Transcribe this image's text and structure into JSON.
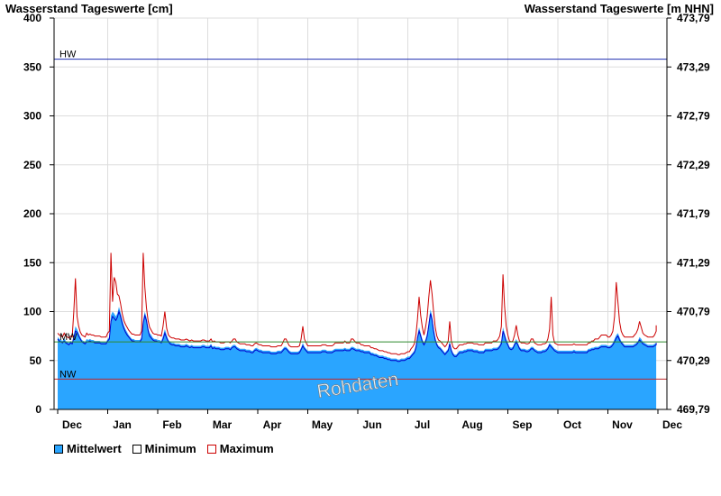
{
  "chart_data": {
    "type": "area",
    "y_left_label": "Wasserstand Tageswerte [cm]",
    "y_right_label": "Wasserstand Tageswerte [m NHN]",
    "y_left_ticks": [
      "0",
      "50",
      "100",
      "150",
      "200",
      "250",
      "300",
      "350",
      "400"
    ],
    "y_right_ticks": [
      "469,79",
      "470,29",
      "470,79",
      "471,29",
      "471,79",
      "472,29",
      "472,79",
      "473,29",
      "473,79"
    ],
    "ylim": [
      0,
      400
    ],
    "x_ticks": [
      "Dec",
      "Jan",
      "Feb",
      "Mar",
      "Apr",
      "May",
      "Jun",
      "Jul",
      "Aug",
      "Sep",
      "Oct",
      "Nov",
      "Dec"
    ],
    "x_tick_units": [
      0,
      1,
      2,
      3,
      4,
      5,
      6,
      7,
      8,
      9,
      10,
      11,
      12
    ],
    "reference_lines": [
      {
        "label": "HW",
        "value": 358,
        "color": "#1f2fb0"
      },
      {
        "label": "MW",
        "value": 69,
        "color": "#2f8a2f"
      },
      {
        "label": "NW",
        "value": 31,
        "color": "#c0282c"
      }
    ],
    "watermark": "Rohdaten",
    "month_days": [
      31,
      31,
      28,
      31,
      30,
      31,
      30,
      31,
      31,
      30,
      31,
      30
    ],
    "series": [
      {
        "name": "Mittelwert",
        "color": "#2aa5ff",
        "values": [
          74,
          72,
          71,
          70,
          73,
          70,
          69,
          68,
          70,
          69,
          76,
          85,
          82,
          78,
          74,
          71,
          70,
          69,
          72,
          71,
          72,
          71,
          71,
          70,
          70,
          70,
          70,
          69,
          69,
          69,
          69,
          72,
          74,
          96,
          100,
          98,
          95,
          98,
          105,
          99,
          92,
          86,
          82,
          79,
          76,
          74,
          72,
          72,
          71,
          71,
          71,
          71,
          74,
          92,
          100,
          94,
          84,
          78,
          76,
          73,
          72,
          72,
          71,
          71,
          70,
          75,
          82,
          76,
          71,
          69,
          68,
          68,
          67,
          67,
          67,
          66,
          66,
          66,
          67,
          66,
          65,
          66,
          65,
          65,
          65,
          65,
          65,
          66,
          66,
          65,
          65,
          65,
          67,
          64,
          65,
          64,
          64,
          64,
          63,
          63,
          63,
          64,
          64,
          64,
          63,
          65,
          66,
          66,
          64,
          63,
          62,
          62,
          62,
          62,
          61,
          61,
          61,
          60,
          60,
          62,
          63,
          62,
          61,
          61,
          60,
          60,
          60,
          60,
          60,
          59,
          59,
          59,
          59,
          60,
          60,
          60,
          62,
          64,
          64,
          62,
          60,
          59,
          59,
          59,
          59,
          59,
          60,
          63,
          68,
          64,
          62,
          60,
          60,
          60,
          60,
          60,
          60,
          60,
          60,
          60,
          61,
          61,
          61,
          60,
          60,
          60,
          60,
          61,
          62,
          62,
          62,
          62,
          62,
          62,
          63,
          62,
          62,
          62,
          64,
          64,
          63,
          62,
          62,
          62,
          61,
          61,
          60,
          60,
          60,
          60,
          58,
          58,
          57,
          57,
          56,
          55,
          55,
          55,
          54,
          54,
          53,
          53,
          52,
          52,
          52,
          52,
          51,
          51,
          52,
          52,
          52,
          53,
          54,
          54,
          56,
          58,
          60,
          66,
          76,
          84,
          78,
          72,
          68,
          72,
          78,
          90,
          102,
          96,
          84,
          74,
          68,
          65,
          64,
          62,
          60,
          58,
          60,
          62,
          70,
          62,
          58,
          56,
          56,
          58,
          60,
          60,
          60,
          61,
          61,
          62,
          62,
          62,
          62,
          61,
          61,
          61,
          60,
          60,
          60,
          60,
          62,
          62,
          62,
          62,
          62,
          63,
          63,
          63,
          64,
          66,
          70,
          84,
          78,
          72,
          68,
          64,
          63,
          64,
          68,
          72,
          68,
          64,
          62,
          62,
          62,
          61,
          61,
          62,
          64,
          64,
          62,
          61,
          60,
          60,
          60,
          61,
          61,
          62,
          64,
          68,
          66,
          64,
          62,
          61,
          60,
          60,
          60,
          60,
          60,
          60,
          60,
          60,
          60,
          60,
          61,
          60,
          60,
          60,
          60,
          60,
          60,
          60,
          60,
          62,
          62,
          63,
          63,
          64,
          64,
          64,
          65,
          66,
          66,
          66,
          66,
          65,
          65,
          66,
          68,
          72,
          76,
          78,
          74,
          70,
          68,
          66,
          66,
          66,
          66,
          66,
          66,
          67,
          68,
          70,
          74,
          72,
          69,
          68,
          67,
          66,
          66,
          66,
          66,
          67,
          68,
          70,
          70
        ]
      },
      {
        "name": "Minimum",
        "color": "#0000cc",
        "values": [
          72,
          70,
          69,
          68,
          70,
          68,
          67,
          66,
          68,
          67,
          73,
          80,
          79,
          75,
          72,
          69,
          68,
          67,
          69,
          69,
          70,
          69,
          69,
          68,
          68,
          68,
          68,
          67,
          67,
          67,
          67,
          70,
          72,
          90,
          95,
          93,
          91,
          94,
          100,
          95,
          88,
          83,
          79,
          76,
          74,
          72,
          70,
          70,
          69,
          69,
          69,
          69,
          72,
          88,
          96,
          91,
          81,
          75,
          73,
          71,
          70,
          70,
          69,
          69,
          68,
          72,
          78,
          73,
          69,
          67,
          66,
          66,
          65,
          65,
          65,
          64,
          64,
          64,
          65,
          64,
          63,
          64,
          63,
          63,
          63,
          63,
          63,
          64,
          64,
          63,
          63,
          63,
          65,
          62,
          63,
          62,
          62,
          62,
          61,
          61,
          61,
          62,
          62,
          62,
          61,
          63,
          64,
          64,
          62,
          61,
          60,
          60,
          60,
          60,
          59,
          59,
          59,
          58,
          58,
          60,
          61,
          60,
          59,
          59,
          58,
          58,
          58,
          58,
          58,
          57,
          57,
          57,
          57,
          58,
          58,
          58,
          60,
          62,
          62,
          60,
          58,
          57,
          57,
          57,
          57,
          57,
          58,
          61,
          65,
          62,
          60,
          58,
          58,
          58,
          58,
          58,
          58,
          58,
          58,
          58,
          59,
          59,
          59,
          58,
          58,
          58,
          58,
          59,
          60,
          60,
          60,
          60,
          60,
          60,
          61,
          60,
          60,
          60,
          62,
          62,
          61,
          60,
          60,
          60,
          59,
          59,
          58,
          58,
          58,
          58,
          56,
          56,
          55,
          55,
          54,
          53,
          53,
          53,
          52,
          52,
          51,
          51,
          50,
          50,
          50,
          50,
          49,
          49,
          50,
          50,
          50,
          51,
          52,
          52,
          54,
          56,
          58,
          63,
          73,
          80,
          75,
          69,
          66,
          69,
          75,
          86,
          98,
          92,
          80,
          71,
          66,
          63,
          62,
          60,
          58,
          56,
          58,
          60,
          67,
          60,
          56,
          54,
          54,
          56,
          58,
          58,
          58,
          59,
          59,
          60,
          60,
          60,
          60,
          59,
          59,
          59,
          58,
          58,
          58,
          58,
          60,
          60,
          60,
          60,
          60,
          61,
          61,
          61,
          62,
          64,
          67,
          80,
          75,
          69,
          66,
          62,
          61,
          62,
          66,
          69,
          66,
          62,
          60,
          60,
          60,
          59,
          59,
          60,
          62,
          62,
          60,
          59,
          58,
          58,
          58,
          59,
          59,
          60,
          62,
          66,
          64,
          62,
          60,
          59,
          58,
          58,
          58,
          58,
          58,
          58,
          58,
          58,
          58,
          58,
          59,
          58,
          58,
          58,
          58,
          58,
          58,
          58,
          58,
          60,
          60,
          61,
          61,
          62,
          62,
          62,
          63,
          64,
          64,
          64,
          64,
          63,
          63,
          64,
          66,
          69,
          73,
          75,
          71,
          68,
          66,
          64,
          64,
          64,
          64,
          64,
          64,
          65,
          66,
          68,
          71,
          69,
          67,
          66,
          65,
          64,
          64,
          64,
          64,
          65,
          66,
          68,
          68
        ]
      },
      {
        "name": "Maximum",
        "color": "#cc0000",
        "values": [
          78,
          76,
          75,
          74,
          78,
          75,
          74,
          73,
          75,
          74,
          100,
          134,
          95,
          85,
          79,
          76,
          75,
          74,
          78,
          76,
          77,
          76,
          76,
          75,
          75,
          75,
          75,
          74,
          74,
          74,
          74,
          78,
          80,
          160,
          110,
          135,
          130,
          118,
          116,
          108,
          98,
          91,
          87,
          84,
          81,
          79,
          77,
          77,
          76,
          76,
          76,
          76,
          80,
          160,
          125,
          104,
          91,
          84,
          81,
          78,
          77,
          77,
          76,
          76,
          75,
          85,
          100,
          83,
          76,
          74,
          73,
          73,
          72,
          72,
          72,
          71,
          71,
          71,
          72,
          71,
          70,
          71,
          70,
          70,
          70,
          70,
          70,
          71,
          71,
          70,
          70,
          70,
          72,
          69,
          70,
          69,
          69,
          69,
          68,
          68,
          68,
          69,
          69,
          69,
          68,
          70,
          72,
          72,
          69,
          68,
          67,
          67,
          67,
          67,
          66,
          66,
          66,
          65,
          65,
          67,
          68,
          67,
          66,
          66,
          65,
          65,
          65,
          65,
          65,
          64,
          64,
          64,
          64,
          65,
          65,
          65,
          68,
          72,
          72,
          68,
          65,
          64,
          64,
          64,
          64,
          64,
          65,
          72,
          85,
          72,
          68,
          65,
          65,
          65,
          65,
          65,
          65,
          65,
          65,
          65,
          66,
          66,
          66,
          65,
          65,
          65,
          65,
          66,
          68,
          68,
          68,
          68,
          68,
          68,
          70,
          68,
          68,
          68,
          72,
          72,
          70,
          68,
          68,
          68,
          66,
          66,
          65,
          65,
          65,
          65,
          63,
          63,
          62,
          62,
          61,
          60,
          60,
          60,
          59,
          59,
          58,
          58,
          57,
          57,
          57,
          57,
          56,
          56,
          57,
          57,
          57,
          58,
          59,
          59,
          62,
          64,
          67,
          76,
          92,
          115,
          96,
          84,
          76,
          84,
          95,
          115,
          132,
          118,
          100,
          84,
          75,
          71,
          70,
          68,
          66,
          64,
          66,
          70,
          90,
          70,
          64,
          62,
          62,
          64,
          66,
          66,
          66,
          67,
          67,
          68,
          68,
          68,
          68,
          67,
          67,
          67,
          66,
          66,
          66,
          66,
          68,
          68,
          68,
          68,
          68,
          70,
          70,
          70,
          72,
          75,
          85,
          138,
          105,
          85,
          76,
          70,
          69,
          70,
          76,
          86,
          76,
          70,
          68,
          68,
          68,
          67,
          67,
          68,
          72,
          72,
          68,
          67,
          66,
          66,
          66,
          67,
          67,
          68,
          72,
          82,
          115,
          76,
          68,
          67,
          66,
          66,
          66,
          66,
          66,
          66,
          66,
          66,
          66,
          66,
          67,
          66,
          66,
          66,
          66,
          66,
          66,
          66,
          66,
          68,
          68,
          70,
          70,
          72,
          72,
          72,
          74,
          76,
          76,
          76,
          76,
          74,
          74,
          76,
          80,
          95,
          130,
          110,
          90,
          80,
          76,
          74,
          74,
          74,
          74,
          74,
          74,
          76,
          78,
          82,
          90,
          84,
          78,
          76,
          75,
          74,
          74,
          74,
          74,
          76,
          80,
          86,
          82
        ]
      }
    ]
  }
}
